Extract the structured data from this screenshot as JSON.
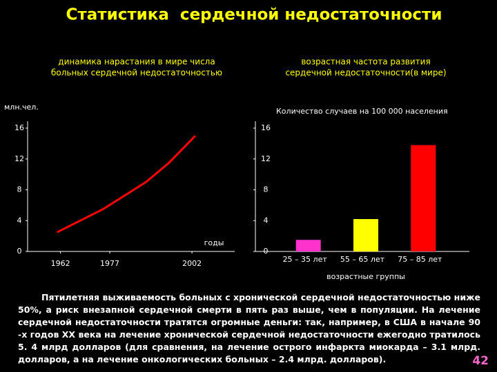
{
  "title": "Статистика  сердечной недостаточности",
  "chart_data": [
    {
      "type": "line",
      "title": "динамика нарастания в мире числа\nбольных сердечной недостаточностью",
      "y_label": "млн.чел.",
      "x_label": "годы",
      "color": "#ff0000",
      "x": [
        1961,
        1975,
        1988,
        1995,
        2003
      ],
      "values": [
        2.5,
        5.5,
        9,
        11.5,
        15
      ],
      "xlim": [
        1952,
        2015
      ],
      "xticks": [
        1962,
        1977,
        2002
      ],
      "ylim": [
        0,
        16
      ],
      "yticks": [
        0,
        4,
        8,
        12,
        16
      ]
    },
    {
      "type": "bar",
      "title": "возрастная частота развития\nсердечной недостаточности(в мире)",
      "y_label": "Количество случаев на 100 000 населения",
      "x_label": "возрастные группы",
      "categories": [
        "25 – 35 лет",
        "55 – 65 лет",
        "75 – 85 лет"
      ],
      "values": [
        1.5,
        4.2,
        13.8
      ],
      "colors": [
        "#ff33cc",
        "#ffff00",
        "#ff0000"
      ],
      "ylim": [
        0,
        16
      ],
      "yticks": [
        0,
        4,
        8,
        12,
        16
      ]
    }
  ],
  "paragraph": "Пятилетняя выживаемость больных с хронической сердечной недостаточностью ниже 50%, а риск внезапной сердечной смерти в пять раз выше, чем в популяции. На лечение сердечной недостаточности тратятся огромные деньги: так, например, в США в начале 90 -х годов XX века на лечение хронической сердечной недостаточности ежегодно тратилось 5. 4 млрд долларов (для сравнения, на лечение острого инфаркта миокарда – 3.1 млрд. долларов, а на лечение онкологических больных – 2.4 млрд. долларов).",
  "page_number": "42"
}
